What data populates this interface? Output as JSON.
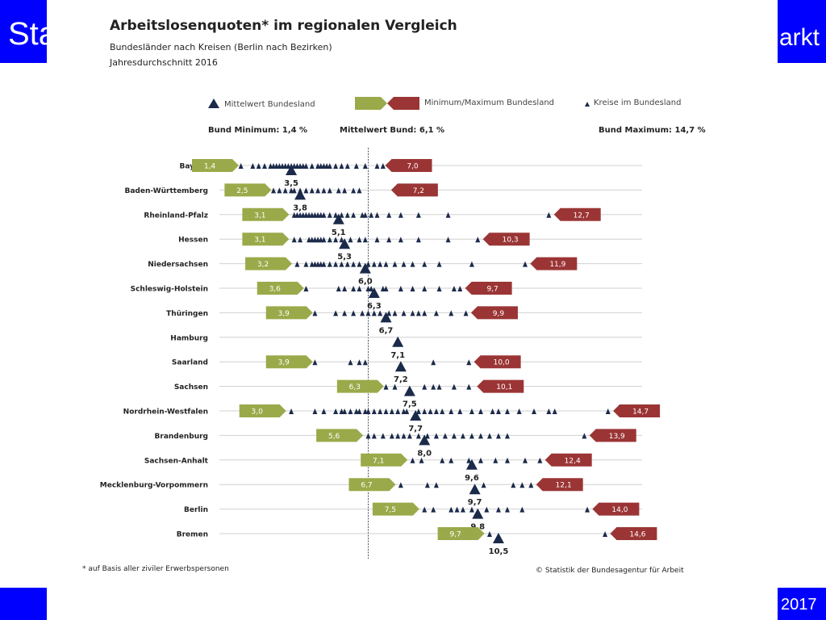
{
  "slide": {
    "title_fragment_left": "Sta",
    "title_fragment_right": "arkt",
    "footer_year": "2017"
  },
  "chart_title": "Arbeitslosenquoten* im regionalen Vergleich",
  "chart_subtitle": "Bundesländer nach Kreisen (Berlin nach Bezirken)",
  "chart_subtitle2": "Jahresdurchschnitt 2016",
  "legend": {
    "mean": "Mittelwert Bundesland",
    "minmax": "Minimum/Maximum  Bundesland",
    "districts": "Kreise im Bundesland"
  },
  "headers": {
    "min": "Bund Minimum: 1,4 %",
    "mean": "Mittelwert Bund: 6,1 %",
    "max": "Bund Maximum: 14,7 %"
  },
  "footnote": "* auf Basis aller ziviler Erwerbspersonen",
  "source": "© Statistik der Bundesagentur für Arbeit",
  "colors": {
    "min_box": "#9aaa4a",
    "max_box": "#9b3535",
    "marker": "#1b2a4a",
    "slide_blue": "#0000ff"
  },
  "chart_data": {
    "type": "scatter",
    "national_min": 1.4,
    "national_mean": 6.1,
    "national_max": 14.7,
    "states": [
      {
        "name": "Bayern",
        "min": 1.4,
        "max": 7.0,
        "mean": 3.5,
        "min_label": "1,4",
        "max_label": "7,0",
        "mean_label": "3,5",
        "districts": [
          1.8,
          2.2,
          2.4,
          2.6,
          2.8,
          2.9,
          3.0,
          3.1,
          3.2,
          3.3,
          3.4,
          3.5,
          3.6,
          3.7,
          3.8,
          3.9,
          4.0,
          4.2,
          4.4,
          4.5,
          4.6,
          4.7,
          4.8,
          5.0,
          5.2,
          5.4,
          5.7,
          6.0,
          6.4,
          6.6
        ]
      },
      {
        "name": "Baden-Württemberg",
        "min": 2.5,
        "max": 7.2,
        "mean": 3.8,
        "min_label": "2,5",
        "max_label": "7,2",
        "mean_label": "3,8",
        "districts": [
          2.9,
          3.1,
          3.3,
          3.5,
          3.6,
          3.8,
          4.0,
          4.2,
          4.4,
          4.6,
          4.8,
          5.1,
          5.3,
          5.6,
          5.8
        ]
      },
      {
        "name": "Rheinland-Pfalz",
        "min": 3.1,
        "max": 12.7,
        "mean": 5.1,
        "min_label": "3,1",
        "max_label": "12,7",
        "mean_label": "5,1",
        "districts": [
          3.6,
          3.7,
          3.8,
          3.9,
          4.0,
          4.1,
          4.2,
          4.3,
          4.4,
          4.5,
          4.6,
          4.8,
          5.0,
          5.2,
          5.4,
          5.6,
          5.9,
          6.0,
          6.2,
          6.4,
          6.8,
          7.2,
          7.8,
          8.8,
          12.2
        ]
      },
      {
        "name": "Hessen",
        "min": 3.1,
        "max": 10.3,
        "mean": 5.3,
        "min_label": "3,1",
        "max_label": "10,3",
        "mean_label": "5,3",
        "districts": [
          3.6,
          3.8,
          4.1,
          4.2,
          4.3,
          4.4,
          4.5,
          4.6,
          4.8,
          5.0,
          5.2,
          5.5,
          5.8,
          6.0,
          6.4,
          6.8,
          7.2,
          7.8,
          8.8,
          9.8
        ]
      },
      {
        "name": "Niedersachsen",
        "min": 3.2,
        "max": 11.9,
        "mean": 6.0,
        "min_label": "3,2",
        "max_label": "11,9",
        "mean_label": "6,0",
        "districts": [
          3.7,
          4.0,
          4.2,
          4.3,
          4.4,
          4.5,
          4.6,
          4.8,
          5.0,
          5.2,
          5.4,
          5.6,
          5.8,
          6.1,
          6.3,
          6.5,
          6.7,
          7.0,
          7.3,
          7.6,
          8.0,
          8.5,
          9.6,
          11.4
        ]
      },
      {
        "name": "Schleswig-Holstein",
        "min": 3.6,
        "max": 9.7,
        "mean": 6.3,
        "min_label": "3,6",
        "max_label": "9,7",
        "mean_label": "6,3",
        "districts": [
          4.0,
          5.1,
          5.3,
          5.6,
          5.8,
          6.1,
          6.2,
          6.6,
          6.7,
          7.2,
          7.6,
          8.0,
          8.5,
          9.0,
          9.2
        ]
      },
      {
        "name": "Thüringen",
        "min": 3.9,
        "max": 9.9,
        "mean": 6.7,
        "min_label": "3,9",
        "max_label": "9,9",
        "mean_label": "6,7",
        "districts": [
          4.3,
          5.0,
          5.3,
          5.6,
          5.9,
          6.1,
          6.3,
          6.5,
          6.8,
          7.0,
          7.3,
          7.6,
          7.8,
          8.0,
          8.4,
          8.9,
          9.4
        ]
      },
      {
        "name": "Hamburg",
        "min": null,
        "max": null,
        "mean": 7.1,
        "min_label": "",
        "max_label": "",
        "mean_label": "7,1",
        "districts": []
      },
      {
        "name": "Saarland",
        "min": 3.9,
        "max": 10.0,
        "mean": 7.2,
        "min_label": "3,9",
        "max_label": "10,0",
        "mean_label": "7,2",
        "districts": [
          4.3,
          5.5,
          5.8,
          6.0,
          8.3,
          9.5
        ]
      },
      {
        "name": "Sachsen",
        "min": 6.3,
        "max": 10.1,
        "mean": 7.5,
        "min_label": "6,3",
        "max_label": "10,1",
        "mean_label": "7,5",
        "districts": [
          6.7,
          7.0,
          8.0,
          8.3,
          8.5,
          9.0,
          9.5
        ]
      },
      {
        "name": "Nordrhein-Westfalen",
        "min": 3.0,
        "max": 14.7,
        "mean": 7.7,
        "min_label": "3,0",
        "max_label": "14,7",
        "mean_label": "7,7",
        "districts": [
          3.5,
          4.3,
          4.6,
          5.0,
          5.2,
          5.3,
          5.5,
          5.7,
          5.8,
          6.0,
          6.1,
          6.3,
          6.5,
          6.7,
          6.9,
          7.1,
          7.3,
          7.4,
          7.8,
          8.0,
          8.2,
          8.4,
          8.6,
          8.9,
          9.2,
          9.6,
          9.9,
          10.3,
          10.5,
          10.8,
          11.2,
          11.7,
          12.2,
          12.4,
          14.2
        ]
      },
      {
        "name": "Brandenburg",
        "min": 5.6,
        "max": 13.9,
        "mean": 8.0,
        "min_label": "5,6",
        "max_label": "13,9",
        "mean_label": "8,0",
        "districts": [
          6.1,
          6.3,
          6.6,
          6.9,
          7.1,
          7.3,
          7.5,
          7.8,
          8.1,
          8.4,
          8.7,
          9.0,
          9.3,
          9.6,
          9.9,
          10.2,
          10.5,
          10.8,
          13.4
        ]
      },
      {
        "name": "Sachsen-Anhalt",
        "min": 7.1,
        "max": 12.4,
        "mean": 9.6,
        "min_label": "7,1",
        "max_label": "12,4",
        "mean_label": "9,6",
        "districts": [
          7.6,
          7.9,
          8.6,
          8.9,
          9.5,
          9.9,
          10.4,
          10.8,
          11.4,
          11.9
        ]
      },
      {
        "name": "Mecklenburg-Vorpommern",
        "min": 6.7,
        "max": 12.1,
        "mean": 9.7,
        "min_label": "6,7",
        "max_label": "12,1",
        "mean_label": "9,7",
        "districts": [
          7.2,
          8.1,
          8.4,
          10.0,
          11.0,
          11.3,
          11.6
        ]
      },
      {
        "name": "Berlin",
        "min": 7.5,
        "max": 14.0,
        "mean": 9.8,
        "min_label": "7,5",
        "max_label": "14,0",
        "mean_label": "9,8",
        "districts": [
          8.0,
          8.3,
          8.9,
          9.1,
          9.3,
          9.6,
          10.1,
          10.5,
          10.8,
          11.3,
          13.5
        ]
      },
      {
        "name": "Bremen",
        "min": 9.7,
        "max": 14.6,
        "mean": 10.5,
        "min_label": "9,7",
        "max_label": "14,6",
        "mean_label": "10,5",
        "districts": [
          10.2,
          14.1
        ]
      }
    ]
  }
}
